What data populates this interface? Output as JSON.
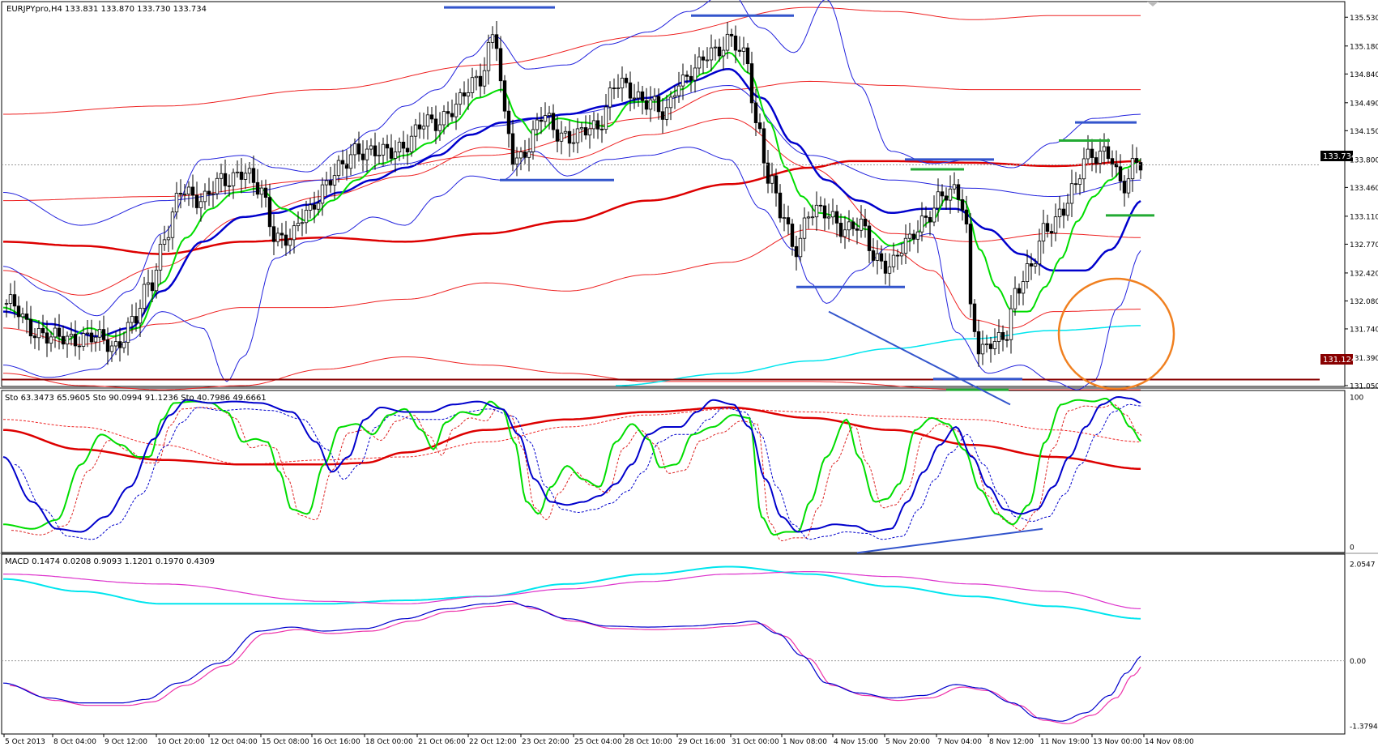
{
  "chart_data": [
    {
      "type": "candlestick",
      "header": "EURJPYpro,H4  133.831 133.870 133.730 133.734",
      "y_ticks": [
        "135.530",
        "135.180",
        "134.840",
        "134.490",
        "134.150",
        "133.800",
        "133.460",
        "133.110",
        "132.770",
        "132.420",
        "132.080",
        "131.740",
        "131.390",
        "131.050"
      ],
      "ylim": [
        131.05,
        135.7
      ],
      "current_price_label": "133.734",
      "current_price": 133.734,
      "support_label": "131.124",
      "support_price": 131.124,
      "colors": {
        "up_candle": "#ffffff",
        "down_candle": "#000000",
        "fast_ma": "#00dd00",
        "mid_ma": "#0000cc",
        "slow_ma": "#dd0000",
        "envelope_blue": "#2222dd",
        "envelope_red": "#ee2222",
        "cyan_ma": "#00e5ee",
        "annotation_blue": "#3355cc",
        "annotation_green": "#22aa33",
        "circle": "#f08020",
        "support_line": "#880000"
      }
    },
    {
      "type": "line",
      "header": "Sto 63.3473 65.9605  Sto 90.0994 91.1236  Sto 40.7986 49.6661",
      "y_ticks": [
        "100",
        "0"
      ],
      "ylim": [
        0,
        100
      ]
    },
    {
      "type": "line",
      "header": "MACD 0.1474 0.0208 0.9093 1.1201 0.1970 0.4309",
      "y_ticks": [
        "2.0547",
        "0.00",
        "-1.3794"
      ],
      "ylim": [
        -1.3794,
        2.0547
      ]
    }
  ],
  "x_ticks": [
    "5 Oct 2013",
    "8 Oct 04:00",
    "9 Oct 12:00",
    "10 Oct 20:00",
    "12 Oct 04:00",
    "15 Oct 08:00",
    "16 Oct 16:00",
    "18 Oct 00:00",
    "21 Oct 06:00",
    "22 Oct 12:00",
    "23 Oct 20:00",
    "25 Oct 04:00",
    "28 Oct 10:00",
    "29 Oct 16:00",
    "31 Oct 00:00",
    "1 Nov 08:00",
    "4 Nov 15:00",
    "5 Nov 20:00",
    "7 Nov 04:00",
    "8 Nov 12:00",
    "11 Nov 19:00",
    "13 Nov 00:00",
    "14 Nov 08:00"
  ]
}
